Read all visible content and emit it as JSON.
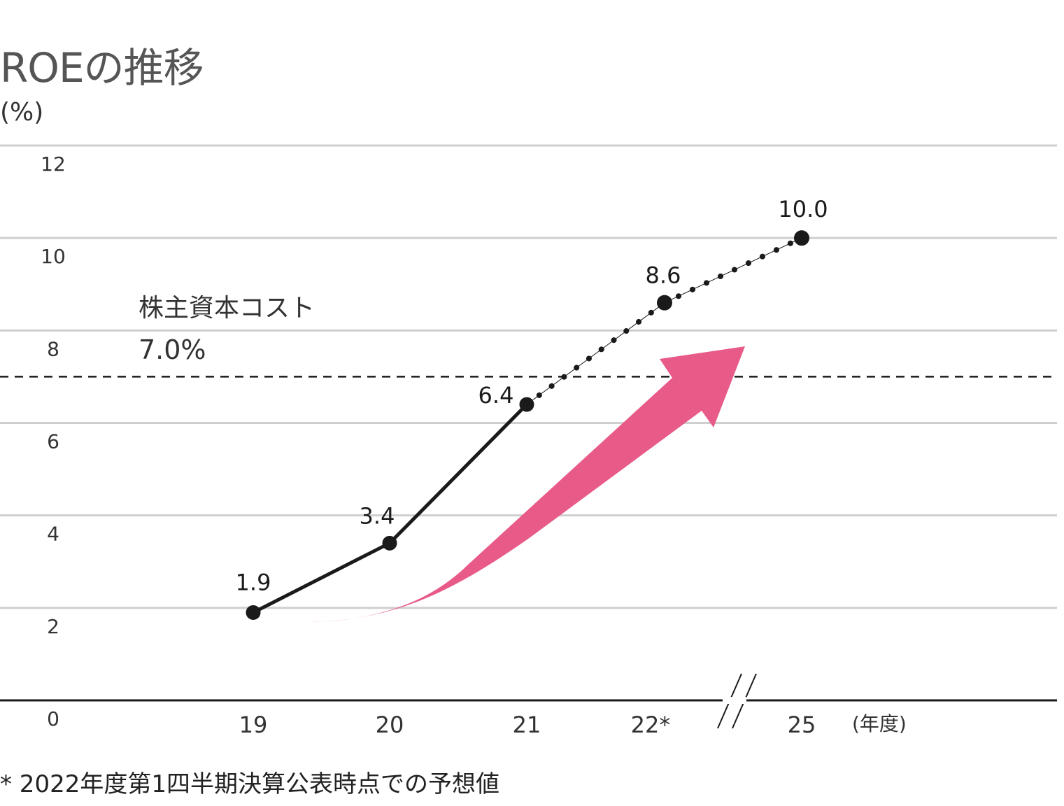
{
  "title": "ROEの推移",
  "unit_label": "(%)",
  "footnote": "* 2022年度第1四半期決算公表時点での予想値",
  "chart_data": {
    "type": "line",
    "title": "ROEの推移",
    "ylabel": "(%)",
    "xlabel": "(年度)",
    "ylim": [
      0,
      12
    ],
    "y_ticks": [
      "0",
      "2",
      "4",
      "6",
      "8",
      "10",
      "12"
    ],
    "grid": true,
    "categories": [
      "19",
      "20",
      "21",
      "22*",
      "25"
    ],
    "axis_break_between": [
      "22*",
      "25"
    ],
    "series": [
      {
        "values": [
          1.9,
          3.4,
          6.4,
          8.6,
          10.0
        ],
        "labels": [
          "1.9",
          "3.4",
          "6.4",
          "8.6",
          "10.0"
        ],
        "style_by_segment": [
          "solid",
          "solid",
          "dotted",
          "dotted"
        ],
        "color": "#1a1a1a"
      }
    ],
    "reference_line": {
      "name": "株主資本コスト",
      "value": 7.0,
      "value_label": "7.0%",
      "style": "dashed"
    },
    "decoration": {
      "shape": "upward-trend-arrow",
      "color": "#e85a87"
    }
  },
  "colors": {
    "grid": "#cfcfcf",
    "axis": "#1a1a1a",
    "line": "#1a1a1a",
    "arrow": "#e85a87"
  }
}
